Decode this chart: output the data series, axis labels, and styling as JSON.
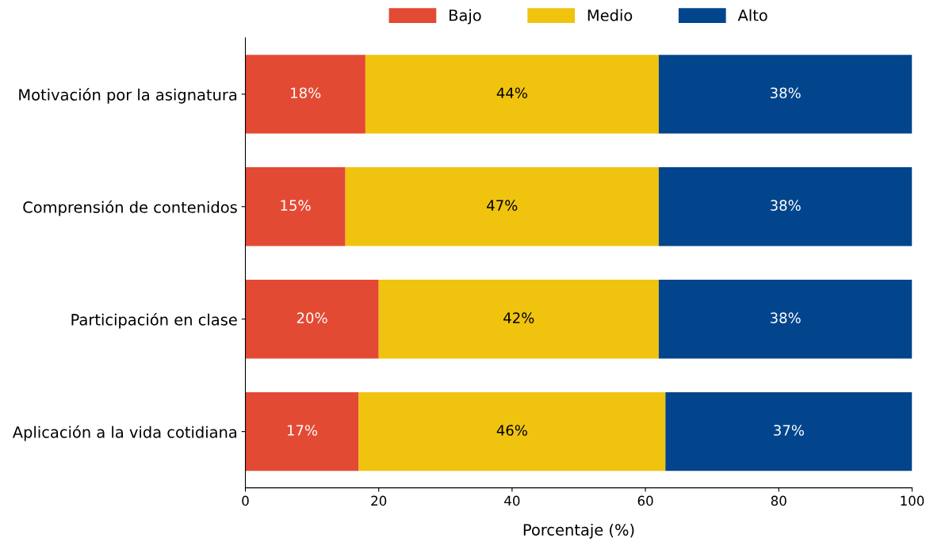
{
  "chart_data": {
    "type": "bar",
    "orientation": "horizontal",
    "stacked": true,
    "xlabel": "Porcentaje (%)",
    "categories": [
      "Motivación por la asignatura",
      "Comprensión de contenidos",
      "Participación en clase",
      "Aplicación a la vida cotidiana"
    ],
    "series": [
      {
        "name": "Bajo",
        "color": "#e34a33",
        "values": [
          18,
          15,
          20,
          17
        ],
        "value_labels": [
          "18%",
          "15%",
          "20%",
          "17%"
        ]
      },
      {
        "name": "Medio",
        "color": "#f0c30f",
        "values": [
          44,
          47,
          42,
          46
        ],
        "value_labels": [
          "44%",
          "47%",
          "42%",
          "46%"
        ]
      },
      {
        "name": "Alto",
        "color": "#03458c",
        "values": [
          38,
          38,
          38,
          37
        ],
        "value_labels": [
          "38%",
          "38%",
          "38%",
          "37%"
        ]
      }
    ],
    "xlim": [
      0,
      100
    ],
    "xticks": [
      0,
      20,
      40,
      60,
      80,
      100
    ],
    "grid": false,
    "legend": "top"
  }
}
